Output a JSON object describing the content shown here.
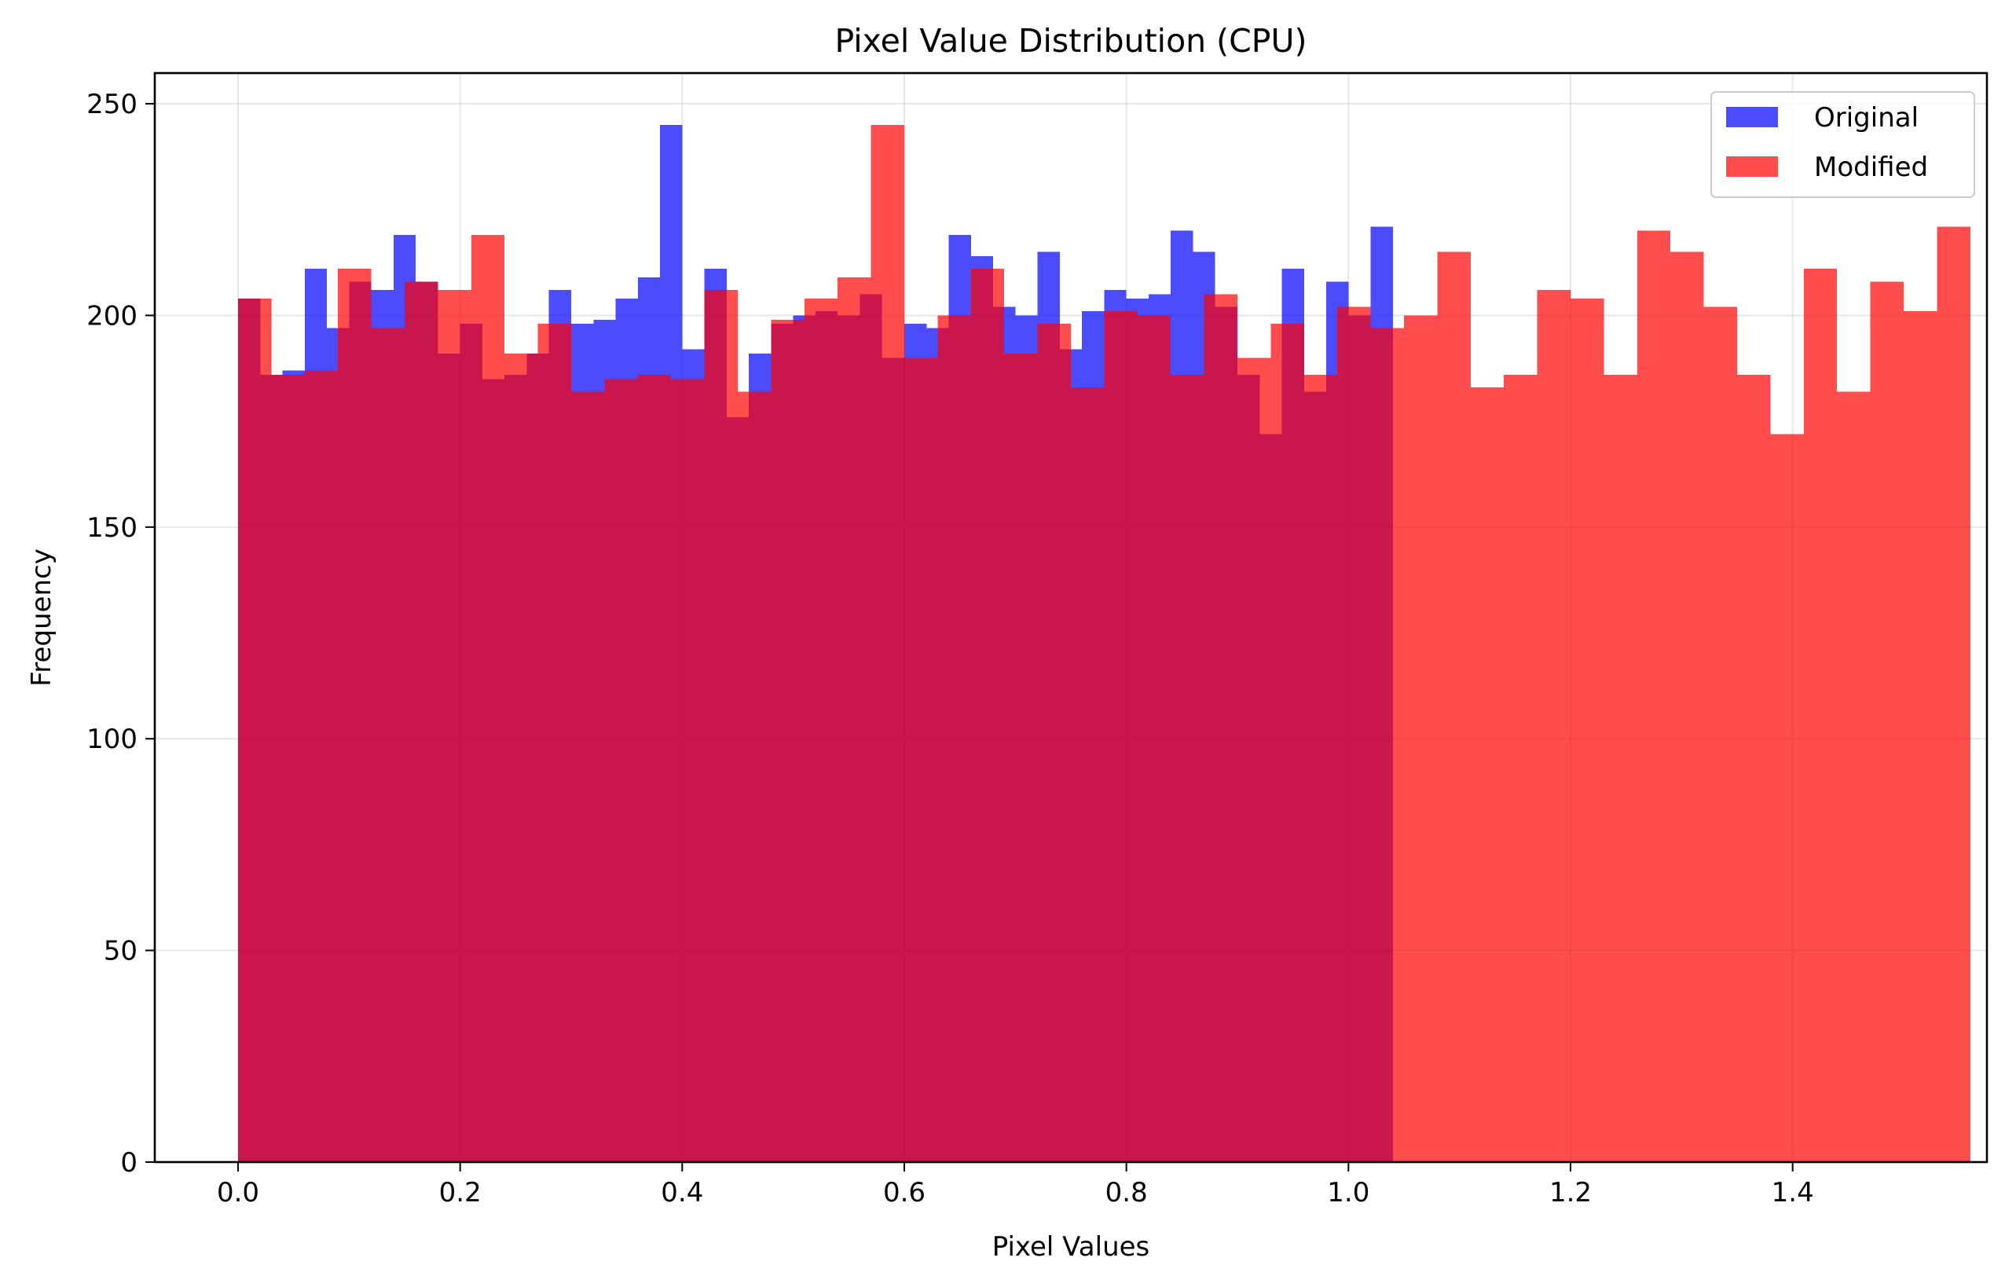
{
  "chart_data": {
    "type": "histogram",
    "title": "Pixel Value Distribution (CPU)",
    "xlabel": "Pixel Values",
    "ylabel": "Frequency",
    "xlim": [
      -0.075,
      1.575
    ],
    "ylim": [
      0,
      257.25
    ],
    "x_ticks": [
      "0.0",
      "0.2",
      "0.4",
      "0.6",
      "0.8",
      "1.0",
      "1.2",
      "1.4"
    ],
    "y_ticks": [
      "0",
      "50",
      "100",
      "150",
      "200",
      "250"
    ],
    "grid": true,
    "legend_position": "top-right",
    "series": [
      {
        "name": "Original",
        "color": "#0000ff",
        "alpha": 0.7,
        "bin_start": 0.0,
        "bin_width": 0.02,
        "values": [
          204,
          186,
          187,
          211,
          197,
          208,
          206,
          219,
          208,
          191,
          198,
          185,
          186,
          191,
          206,
          198,
          199,
          204,
          209,
          245,
          192,
          211,
          176,
          191,
          198,
          200,
          201,
          200,
          205,
          190,
          198,
          197,
          219,
          214,
          202,
          200,
          215,
          192,
          201,
          206,
          204,
          205,
          220,
          215,
          202,
          186,
          172,
          211,
          182,
          208,
          200,
          221
        ]
      },
      {
        "name": "Modified",
        "color": "#ff0000",
        "alpha": 0.7,
        "bin_start": 0.0,
        "bin_width": 0.03,
        "values": [
          204,
          186,
          187,
          211,
          197,
          208,
          206,
          219,
          191,
          198,
          182,
          185,
          186,
          185,
          206,
          182,
          199,
          204,
          209,
          245,
          190,
          200,
          211,
          191,
          198,
          183,
          201,
          200,
          186,
          205,
          190,
          198,
          186,
          202,
          197,
          200,
          215,
          183,
          186,
          206,
          204,
          186,
          220,
          215,
          202,
          186,
          172,
          211,
          182,
          208,
          201,
          221
        ]
      }
    ]
  }
}
